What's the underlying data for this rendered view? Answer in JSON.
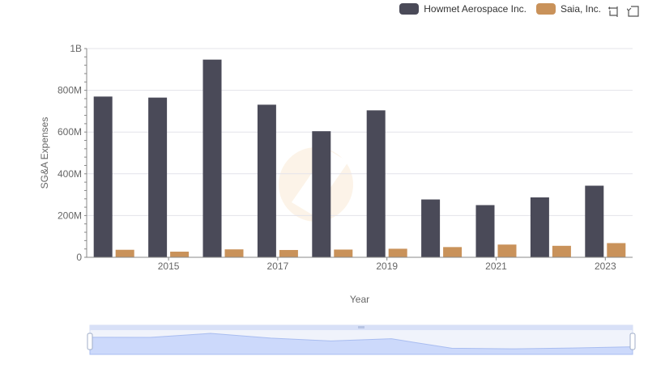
{
  "legend": [
    {
      "label": "Howmet Aerospace Inc.",
      "color": "#4a4a58"
    },
    {
      "label": "Saia, Inc.",
      "color": "#c9925a"
    }
  ],
  "toolbox": {
    "zoom_icon": "zoom-icon",
    "restore_icon": "restore-icon"
  },
  "chart_data": {
    "type": "bar",
    "categories": [
      "2014",
      "2015",
      "2016",
      "2017",
      "2018",
      "2019",
      "2020",
      "2021",
      "2022",
      "2023"
    ],
    "series": [
      {
        "name": "Howmet Aerospace Inc.",
        "color": "#4a4a58",
        "values": [
          770000000,
          765000000,
          947000000,
          731000000,
          604000000,
          704000000,
          277000000,
          250000000,
          287000000,
          343000000
        ]
      },
      {
        "name": "Saia, Inc.",
        "color": "#c9925a",
        "values": [
          36000000,
          27000000,
          38000000,
          35000000,
          37000000,
          41000000,
          49000000,
          61000000,
          55000000,
          68000000
        ]
      }
    ],
    "xticks": [
      "2015",
      "2017",
      "2019",
      "2021",
      "2023"
    ],
    "ylabel": "SG&A Expenses",
    "xlabel": "Year",
    "yticks": [
      "0",
      "200M",
      "400M",
      "600M",
      "800M",
      "1B"
    ],
    "ytick_values": [
      0,
      200000000,
      400000000,
      600000000,
      800000000,
      1000000000
    ],
    "ylim": [
      0,
      1000000000
    ],
    "grid": true,
    "legend_position": "top-right",
    "datazoom": true
  }
}
